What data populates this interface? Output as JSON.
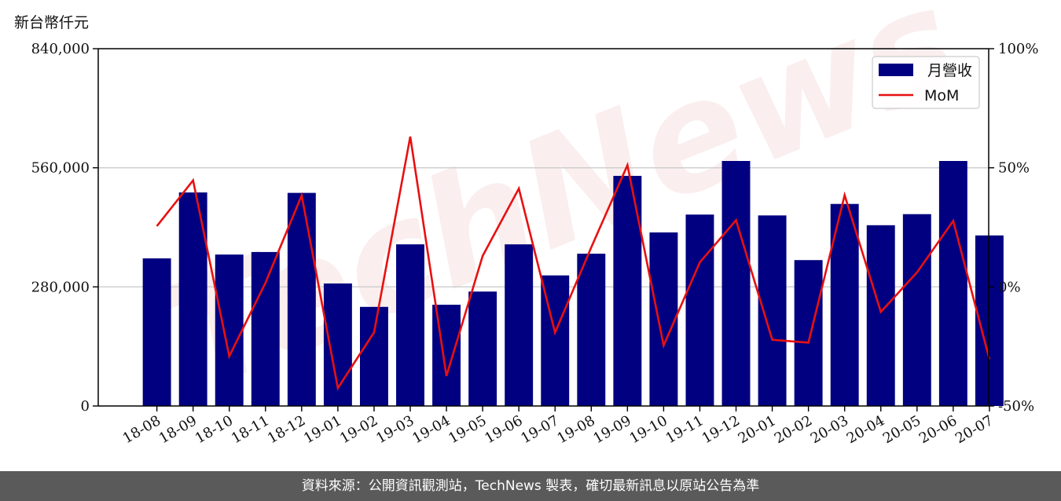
{
  "unit_label": "新台幣仟元",
  "footer_text": "資料來源：公開資訊觀測站，TechNews 製表，確切最新訊息以原站公告為準",
  "watermark_text": "TechNews",
  "colors": {
    "bar": "#000080",
    "line": "#e81010",
    "grid": "#cccccc",
    "footer_bg": "#5a5a5a"
  },
  "chart_data": {
    "type": "bar",
    "categories": [
      "18-08",
      "18-09",
      "18-10",
      "18-11",
      "18-12",
      "19-01",
      "19-02",
      "19-03",
      "19-04",
      "19-05",
      "19-06",
      "19-07",
      "19-08",
      "19-09",
      "19-10",
      "19-11",
      "19-12",
      "20-01",
      "20-02",
      "20-03",
      "20-04",
      "20-05",
      "20-06",
      "20-07"
    ],
    "series": [
      {
        "name": "月營收",
        "type": "bar",
        "axis": "left",
        "values": [
          347000,
          502000,
          356000,
          362000,
          501000,
          288000,
          233000,
          380000,
          238000,
          269000,
          380000,
          307000,
          358000,
          541000,
          408000,
          450000,
          576000,
          448000,
          343000,
          475000,
          425000,
          451000,
          576000,
          401000
        ]
      },
      {
        "name": "MoM",
        "type": "line",
        "axis": "right",
        "unit": "%",
        "values": [
          25.5,
          44.7,
          -29.1,
          1.7,
          38.4,
          -42.5,
          -19.1,
          63.1,
          -37.4,
          13.0,
          41.3,
          -19.2,
          16.6,
          51.1,
          -24.6,
          10.3,
          28.0,
          -22.2,
          -23.4,
          38.5,
          -10.5,
          6.1,
          27.7,
          -30.4
        ]
      }
    ],
    "y_left": {
      "min": 0,
      "max": 840000,
      "ticks": [
        0,
        280000,
        560000,
        840000
      ],
      "tick_labels": [
        "0",
        "280,000",
        "560,000",
        "840,000"
      ]
    },
    "y_right": {
      "min": -50,
      "max": 100,
      "ticks": [
        -50,
        0,
        50,
        100
      ],
      "tick_labels": [
        "-50%",
        "0%",
        "50%",
        "100%"
      ]
    },
    "grid": "horizontal",
    "legend_position": "top-right"
  }
}
